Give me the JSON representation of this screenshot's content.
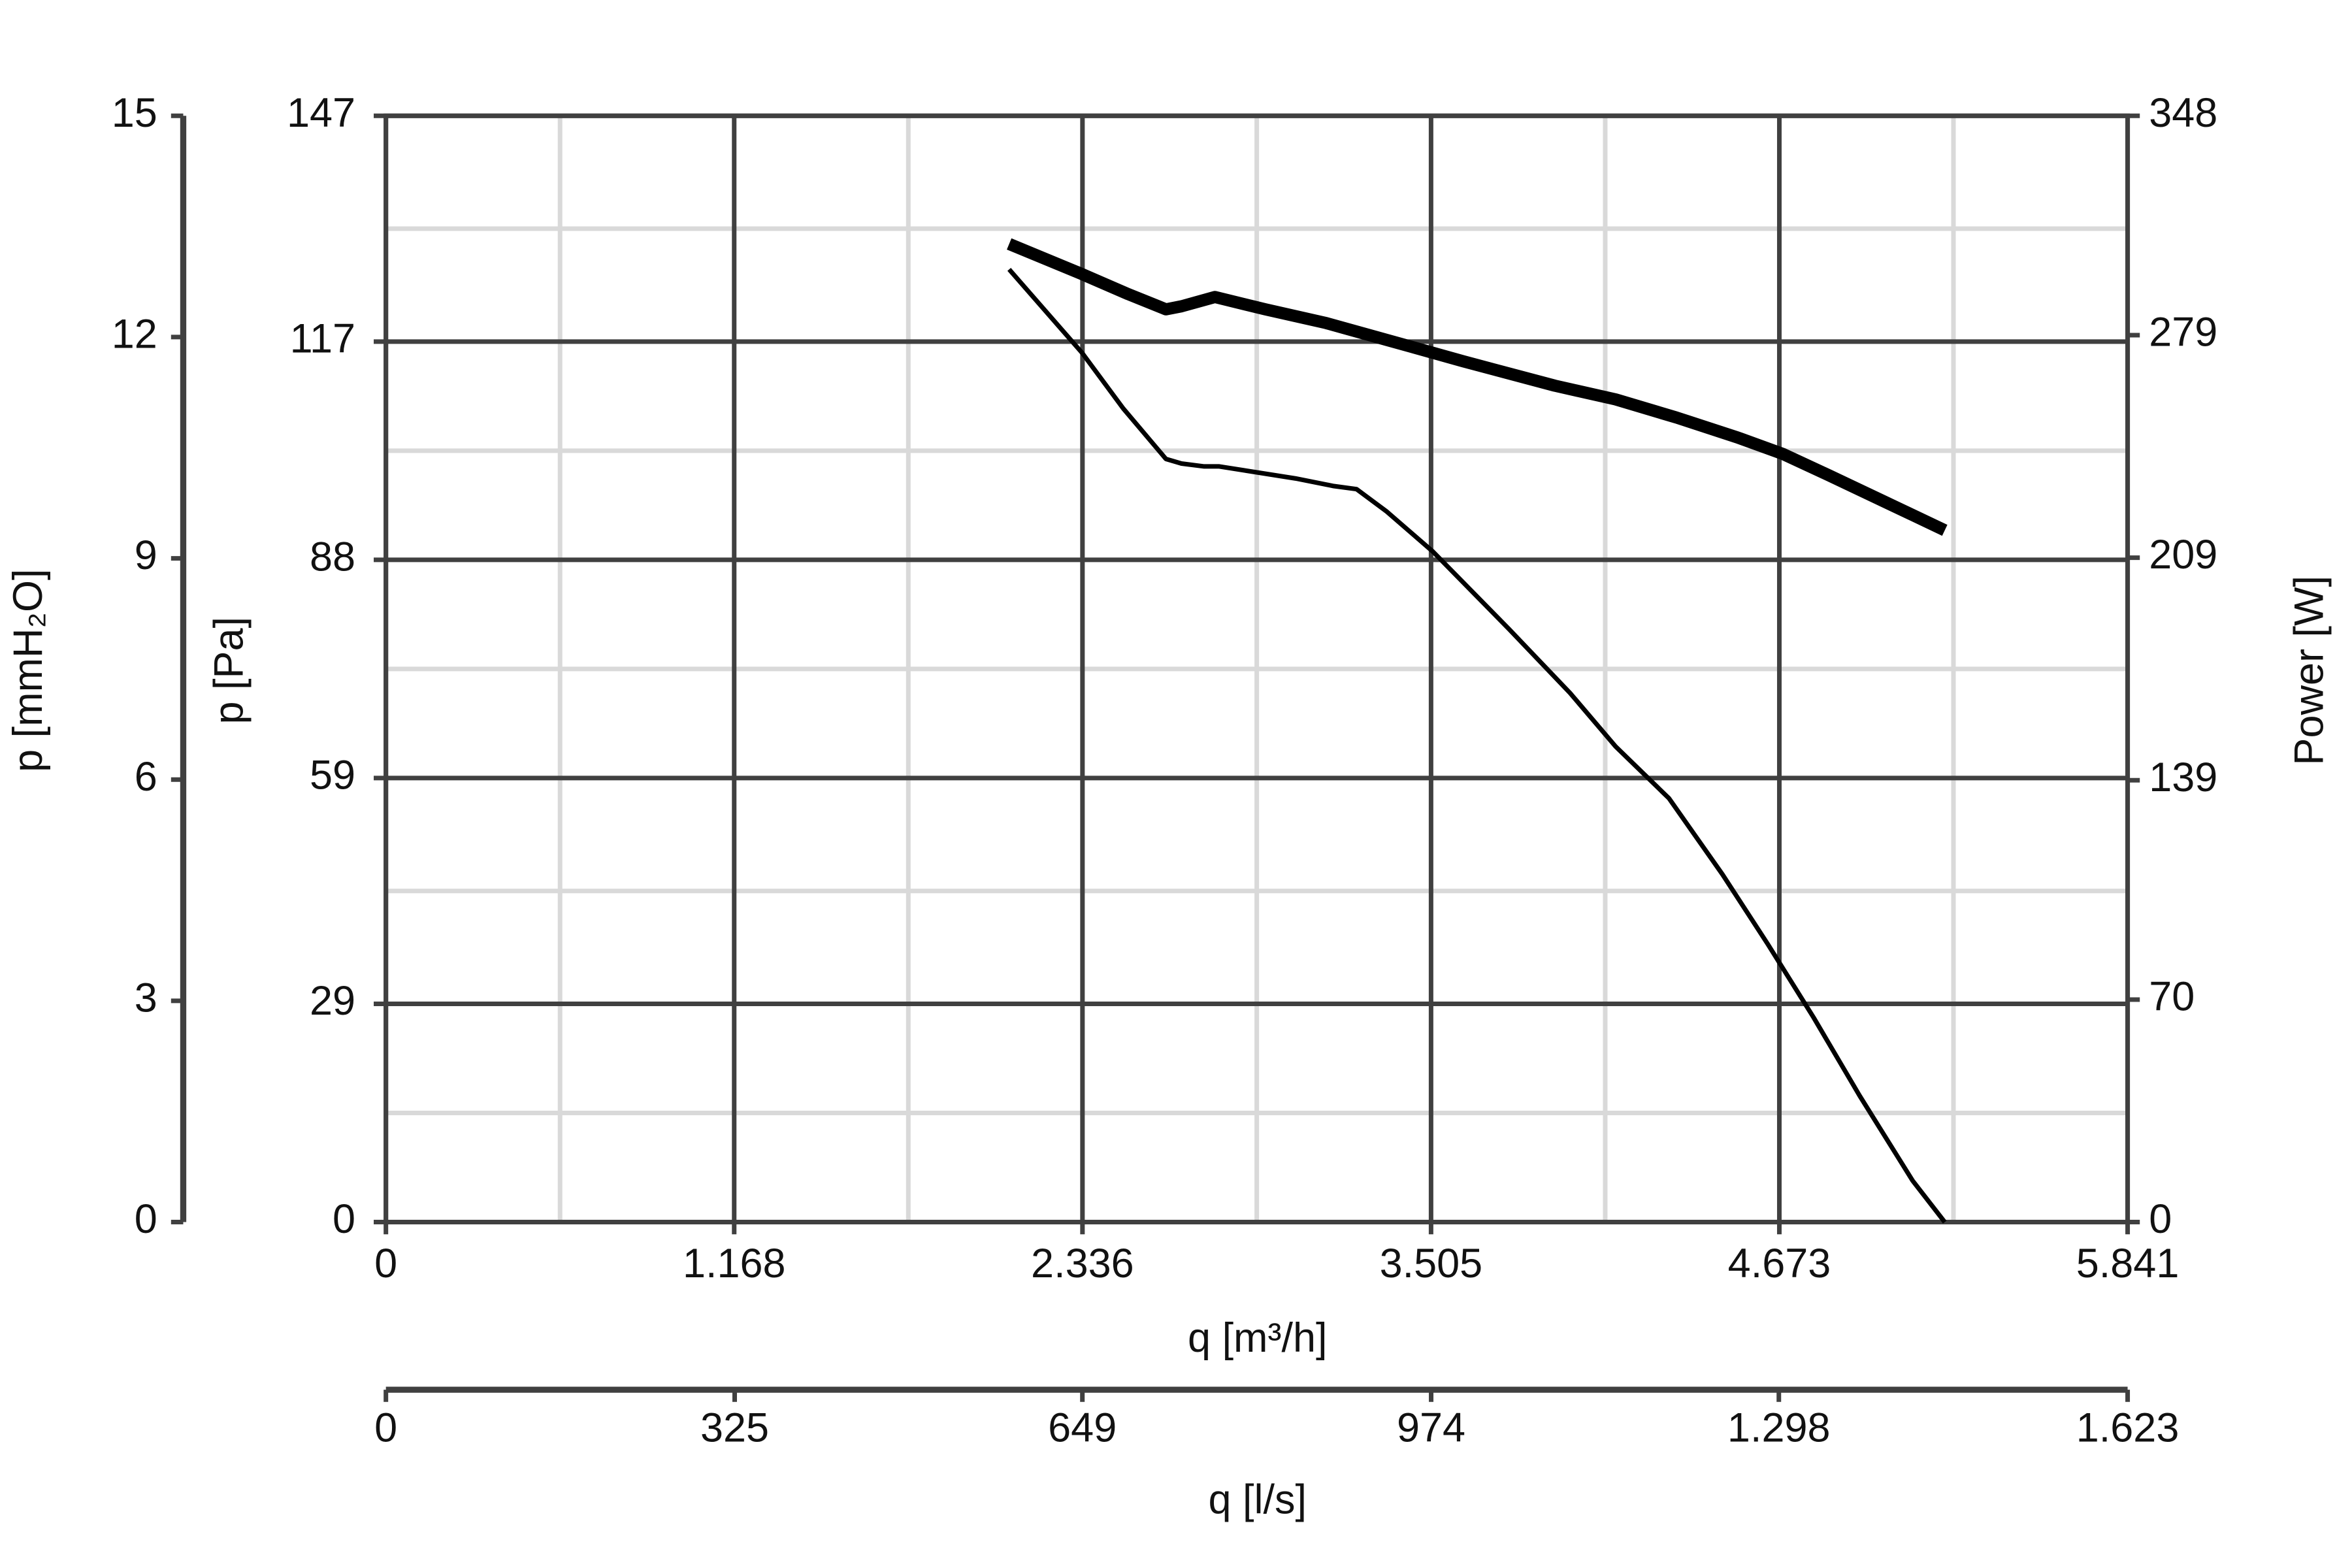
{
  "chart_data": {
    "type": "line",
    "xlabel": "q [m³/h]",
    "ylabel": "p [Pa]",
    "y2label": "Power [W]",
    "xlim": [
      0,
      5841
    ],
    "xticks": [
      0,
      {
        "value": 1168,
        "label": "1.168"
      },
      {
        "value": 2336,
        "label": "2.336"
      },
      {
        "value": 3505,
        "label": "3.505"
      },
      {
        "value": 4673,
        "label": "4.673"
      },
      {
        "value": 5841,
        "label": "5.841"
      }
    ],
    "ylim": [
      0,
      147
    ],
    "yticks": [
      0,
      29,
      59,
      88,
      117,
      147
    ],
    "y2lim": [
      0,
      348
    ],
    "y2ticks": [
      0,
      70,
      139,
      209,
      279,
      348
    ],
    "pressure_mmH2O_axis": {
      "label": "p [mmH₂O]",
      "lim": [
        0,
        15
      ],
      "ticks": [
        0,
        3,
        6,
        9,
        12,
        15
      ]
    },
    "flow_ls_axis": {
      "label": "q [l/s]",
      "lim": [
        0,
        1623
      ],
      "ticks": [
        0,
        325,
        649,
        974,
        {
          "value": 1298,
          "label": "1.298"
        },
        {
          "value": 1623,
          "label": "1.623"
        }
      ]
    },
    "grid": true,
    "minor_grid": true,
    "series": [
      {
        "color": "#000000",
        "width": 3,
        "x": [
          2090,
          2335,
          2473,
          2616,
          2668,
          2744,
          2795,
          3051,
          3179,
          3255,
          3357,
          3511,
          3766,
          3971,
          4124,
          4303,
          4482,
          4635,
          4788,
          4942,
          5120,
          5228
        ],
        "values": [
          126.6,
          115.5,
          108.1,
          101.4,
          100.8,
          100.4,
          100.4,
          98.8,
          97.8,
          97.4,
          94.4,
          89.1,
          78.8,
          70.3,
          63.2,
          56.3,
          46.2,
          36.9,
          27.2,
          16.8,
          5.5,
          0
        ]
      },
      {
        "color": "#000000",
        "width": 8,
        "axis": "y2",
        "x": [
          2090,
          2335,
          2489,
          2616,
          2668,
          2780,
          2949,
          3153,
          3357,
          3613,
          3920,
          4124,
          4328,
          4533,
          4686,
          4839,
          5044,
          5228
        ],
        "values": [
          307.7,
          298.2,
          291.9,
          287.1,
          288.1,
          291.0,
          287.1,
          282.8,
          277.5,
          270.8,
          263.1,
          258.8,
          253.1,
          246.8,
          241.6,
          234.9,
          225.8,
          217.6
        ]
      }
    ]
  }
}
